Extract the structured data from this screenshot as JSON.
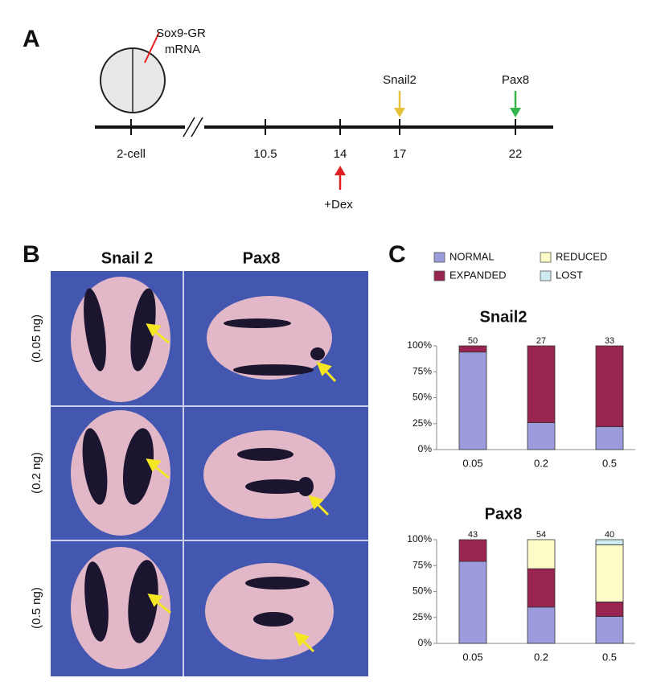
{
  "panel_a": {
    "letter": "A",
    "injection": [
      "Sox9-GR",
      "mRNA"
    ],
    "stages": [
      "2-cell",
      "10.5",
      "14",
      "17",
      "22"
    ],
    "markers": [
      "Snail2",
      "Pax8"
    ],
    "treatment": "+Dex"
  },
  "panel_b": {
    "letter": "B",
    "columns": [
      "Snail 2",
      "Pax8"
    ],
    "rows": [
      "(0.05 ng)",
      "(0.2 ng)",
      "(0.5 ng)"
    ]
  },
  "panel_c": {
    "letter": "C"
  },
  "chart_data": [
    {
      "type": "stacked-bar",
      "title": "Snail2",
      "categories": [
        "0.05",
        "0.2",
        "0.5"
      ],
      "n_labels": [
        "50",
        "27",
        "33"
      ],
      "series": [
        {
          "name": "NORMAL",
          "color": "#9c9cdc",
          "values": [
            94,
            26,
            22
          ]
        },
        {
          "name": "EXPANDED",
          "color": "#9a2450",
          "values": [
            6,
            74,
            78
          ]
        },
        {
          "name": "REDUCED",
          "color": "#fdfbc8",
          "values": [
            0,
            0,
            0
          ]
        },
        {
          "name": "LOST",
          "color": "#cdebf0",
          "values": [
            0,
            0,
            0
          ]
        }
      ],
      "ylim": [
        0,
        100
      ],
      "yticks": [
        {
          "value": 0,
          "label": "0%"
        },
        {
          "value": 25,
          "label": "25%"
        },
        {
          "value": 50,
          "label": "50%"
        },
        {
          "value": 75,
          "label": "75%"
        },
        {
          "value": 100,
          "label": "100%"
        }
      ]
    },
    {
      "type": "stacked-bar",
      "title": "Pax8",
      "categories": [
        "0.05",
        "0.2",
        "0.5"
      ],
      "n_labels": [
        "43",
        "54",
        "40"
      ],
      "series": [
        {
          "name": "NORMAL",
          "color": "#9c9cdc",
          "values": [
            79,
            35,
            26
          ]
        },
        {
          "name": "EXPANDED",
          "color": "#9a2450",
          "values": [
            21,
            37,
            14
          ]
        },
        {
          "name": "REDUCED",
          "color": "#fdfbc8",
          "values": [
            0,
            28,
            55
          ]
        },
        {
          "name": "LOST",
          "color": "#cdebf0",
          "values": [
            0,
            0,
            5
          ]
        }
      ],
      "ylim": [
        0,
        100
      ],
      "yticks": [
        {
          "value": 0,
          "label": "0%"
        },
        {
          "value": 25,
          "label": "25%"
        },
        {
          "value": 50,
          "label": "50%"
        },
        {
          "value": 75,
          "label": "75%"
        },
        {
          "value": 100,
          "label": "100%"
        }
      ]
    }
  ]
}
